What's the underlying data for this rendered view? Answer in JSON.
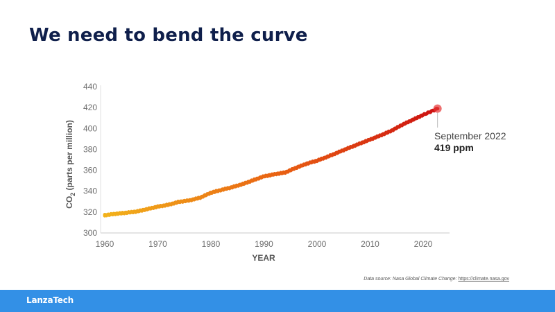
{
  "slide": {
    "title": "We need to bend the curve",
    "source_prefix": "Data source: Nasa Global Climate Change:",
    "source_link": "https://climate.nasa.gov",
    "brand": "LanzaTech"
  },
  "chart_data": {
    "type": "line",
    "title": "",
    "xlabel": "YEAR",
    "ylabel": "CO2 (parts per million)",
    "ylabel_main": "CO",
    "ylabel_sub": "2",
    "ylabel_rest": " (parts per million)",
    "xlim": [
      1960,
      2022.7
    ],
    "ylim": [
      300,
      440
    ],
    "x_ticks": [
      1960,
      1970,
      1980,
      1990,
      2000,
      2010,
      2020
    ],
    "y_ticks": [
      300,
      320,
      340,
      360,
      380,
      400,
      420,
      440
    ],
    "grid": false,
    "legend": "none",
    "series": [
      {
        "x": [
          1958,
          1960,
          1962,
          1964,
          1966,
          1968,
          1970,
          1972,
          1974,
          1976,
          1978,
          1980,
          1982,
          1984,
          1986,
          1988,
          1990,
          1992,
          1994,
          1996,
          1998,
          2000,
          2002,
          2004,
          2006,
          2008,
          2010,
          2012,
          2014,
          2016,
          2018,
          2020,
          2022.7
        ],
        "y": [
          316,
          317,
          318.3,
          319.3,
          320.5,
          322.8,
          325.2,
          327,
          329.8,
          331.2,
          333.8,
          338.5,
          341.2,
          343.8,
          346.8,
          350.5,
          354.2,
          356.2,
          357.9,
          362.3,
          366.2,
          369.2,
          373,
          377.2,
          381.4,
          385.4,
          389.4,
          393.4,
          397.8,
          403.4,
          408.2,
          413,
          419
        ]
      }
    ],
    "colors": {
      "start": "#f2b21b",
      "mid": "#e85d12",
      "end": "#cc1111",
      "endpoint": "#e63333"
    },
    "annotation": {
      "date": "September 2022",
      "value": "419 ppm",
      "x": 2022.7,
      "y": 419
    }
  }
}
